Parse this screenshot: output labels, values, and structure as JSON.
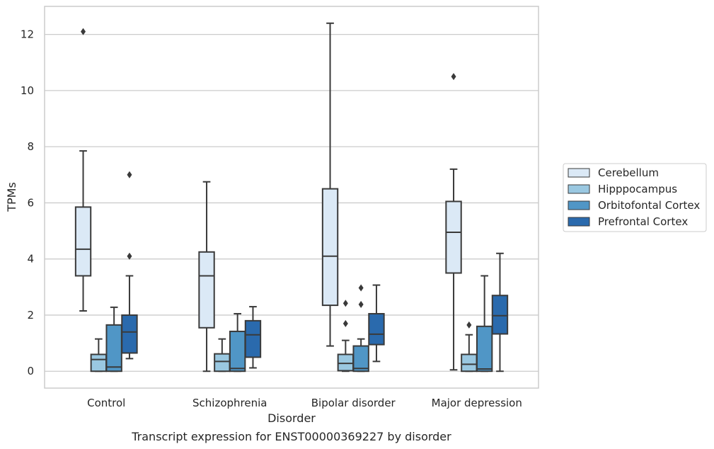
{
  "chart_data": {
    "type": "boxplot",
    "title": "",
    "caption": "Transcript expression for ENST00000369227 by disorder",
    "xlabel": "Disorder",
    "ylabel": "TPMs",
    "ylim": [
      -0.6,
      13.0
    ],
    "yticks": [
      0,
      2,
      4,
      6,
      8,
      10,
      12
    ],
    "grid": "horizontal",
    "legend_position": "right",
    "categories": [
      "Control",
      "Schizophrenia",
      "Bipolar disorder",
      "Major depression"
    ],
    "series": [
      {
        "name": "Cerebellum",
        "color": "#dbe9f6",
        "boxes": [
          {
            "whislo": 2.15,
            "q1": 3.4,
            "med": 4.35,
            "q3": 5.85,
            "whishi": 7.85,
            "fliers": [
              12.1
            ]
          },
          {
            "whislo": 0.0,
            "q1": 1.55,
            "med": 3.4,
            "q3": 4.25,
            "whishi": 6.75,
            "fliers": []
          },
          {
            "whislo": 0.9,
            "q1": 2.35,
            "med": 4.1,
            "q3": 6.5,
            "whishi": 12.4,
            "fliers": []
          },
          {
            "whislo": 0.05,
            "q1": 3.5,
            "med": 4.95,
            "q3": 6.05,
            "whishi": 7.2,
            "fliers": [
              10.5
            ]
          }
        ]
      },
      {
        "name": "Hipppocampus",
        "color": "#9ac8e1",
        "boxes": [
          {
            "whislo": 0.0,
            "q1": 0.0,
            "med": 0.42,
            "q3": 0.6,
            "whishi": 1.15,
            "fliers": []
          },
          {
            "whislo": 0.0,
            "q1": 0.0,
            "med": 0.35,
            "q3": 0.62,
            "whishi": 1.15,
            "fliers": []
          },
          {
            "whislo": 0.0,
            "q1": 0.02,
            "med": 0.28,
            "q3": 0.6,
            "whishi": 1.1,
            "fliers": [
              1.7,
              2.42
            ]
          },
          {
            "whislo": 0.0,
            "q1": 0.0,
            "med": 0.25,
            "q3": 0.6,
            "whishi": 1.3,
            "fliers": [
              1.65
            ]
          }
        ]
      },
      {
        "name": "Orbitofontal Cortex",
        "color": "#5096c6",
        "boxes": [
          {
            "whislo": 0.0,
            "q1": 0.0,
            "med": 0.15,
            "q3": 1.65,
            "whishi": 2.28,
            "fliers": []
          },
          {
            "whislo": 0.0,
            "q1": 0.0,
            "med": 0.1,
            "q3": 1.42,
            "whishi": 2.05,
            "fliers": []
          },
          {
            "whislo": 0.0,
            "q1": 0.0,
            "med": 0.1,
            "q3": 0.9,
            "whishi": 1.15,
            "fliers": [
              2.38,
              2.97
            ]
          },
          {
            "whislo": 0.0,
            "q1": 0.0,
            "med": 0.08,
            "q3": 1.6,
            "whishi": 3.4,
            "fliers": []
          }
        ]
      },
      {
        "name": "Prefrontal Cortex",
        "color": "#2a6aad",
        "boxes": [
          {
            "whislo": 0.45,
            "q1": 0.65,
            "med": 1.4,
            "q3": 2.0,
            "whishi": 3.4,
            "fliers": [
              4.1,
              7.0
            ]
          },
          {
            "whislo": 0.12,
            "q1": 0.5,
            "med": 1.3,
            "q3": 1.8,
            "whishi": 2.3,
            "fliers": []
          },
          {
            "whislo": 0.35,
            "q1": 0.95,
            "med": 1.32,
            "q3": 2.05,
            "whishi": 3.07,
            "fliers": []
          },
          {
            "whislo": 0.0,
            "q1": 1.33,
            "med": 1.98,
            "q3": 2.7,
            "whishi": 4.2,
            "fliers": []
          }
        ]
      }
    ]
  }
}
